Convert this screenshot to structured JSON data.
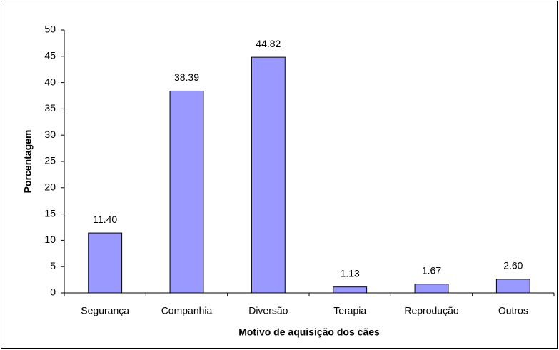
{
  "chart_data": {
    "type": "bar",
    "categories": [
      "Segurança",
      "Companhia",
      "Diversão",
      "Terapia",
      "Reprodução",
      "Outros"
    ],
    "values": [
      11.4,
      38.39,
      44.82,
      1.13,
      1.67,
      2.6
    ],
    "value_labels": [
      "11.40",
      "38.39",
      "44.82",
      "1.13",
      "1.67",
      "2.60"
    ],
    "color": "#9999ff",
    "x_label": "Motivo de aquisição dos cães",
    "y_label": "Porcentagem",
    "ylim": [
      0,
      50
    ],
    "yticks": [
      0,
      5,
      10,
      15,
      20,
      25,
      30,
      35,
      40,
      45,
      50
    ],
    "grid": false
  }
}
